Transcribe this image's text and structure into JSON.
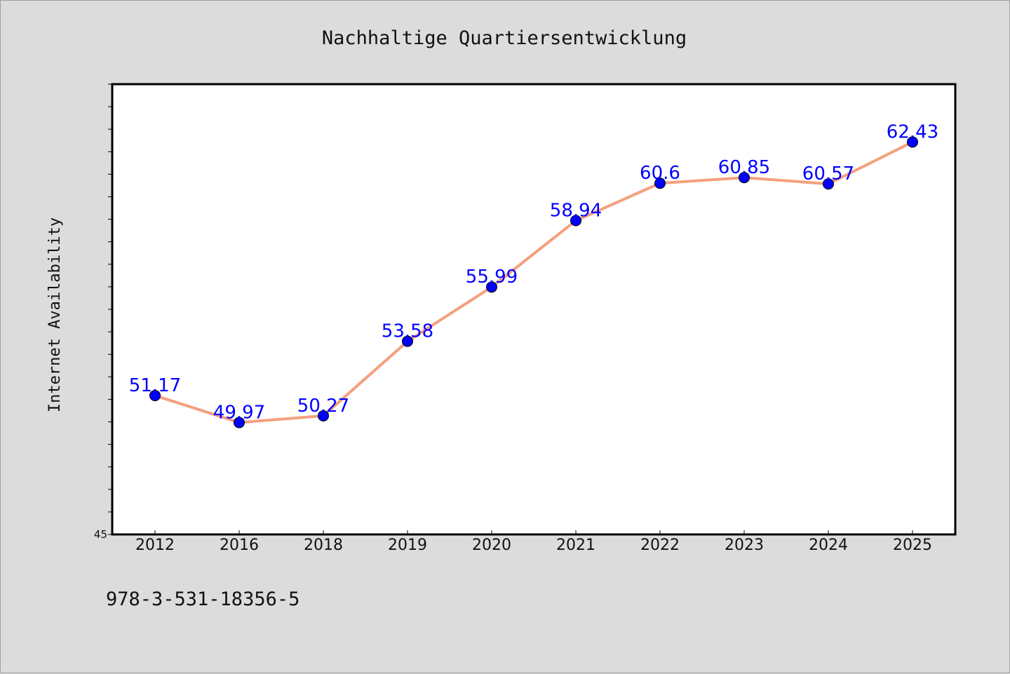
{
  "page": {
    "background": "#dcdcdc",
    "footer_text": "978-3-531-18356-5"
  },
  "chart_data": {
    "type": "line",
    "title": "Nachhaltige Quartiersentwicklung",
    "xlabel": "",
    "ylabel": "Internet Availability",
    "categories": [
      "2012",
      "2016",
      "2018",
      "2019",
      "2020",
      "2021",
      "2022",
      "2023",
      "2024",
      "2025"
    ],
    "series": [
      {
        "values": [
          51.17,
          49.97,
          50.27,
          53.58,
          55.99,
          58.94,
          60.6,
          60.85,
          60.57,
          62.43
        ],
        "labels": [
          "51.17",
          "49.97",
          "50.27",
          "53.58",
          "55.99",
          "58.94",
          "60.6",
          "60.85",
          "60.57",
          "62.43"
        ],
        "line_color": "#f4a07e",
        "marker_color": "#0000ff",
        "label_color": "#0000ff"
      }
    ],
    "ylim": [
      45,
      65
    ],
    "y_tick_labels": [
      "45"
    ],
    "grid": false,
    "legend": "none",
    "plot_background": "#ffffff"
  }
}
